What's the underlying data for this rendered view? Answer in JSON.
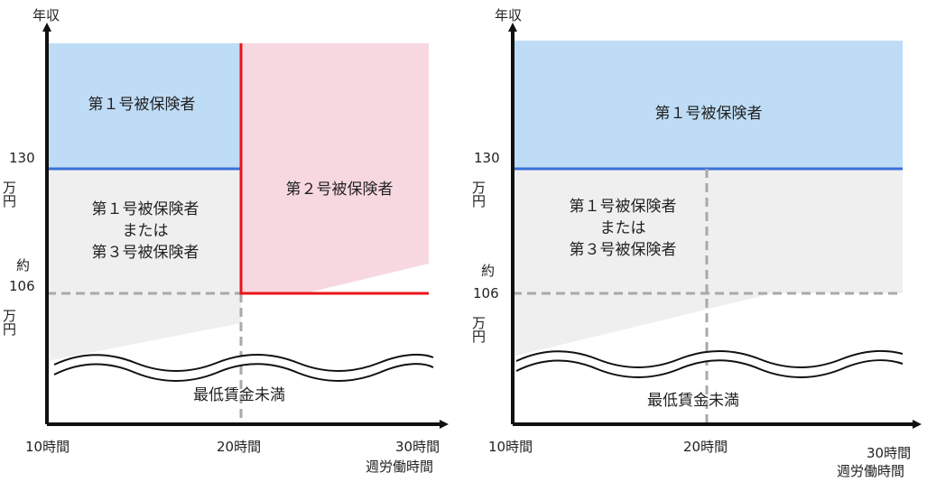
{
  "left": {
    "y_axis_title": "年収",
    "y_labels": {
      "v130": "130",
      "v130_unit": "万円",
      "approx": "約",
      "v106": "106",
      "v106_unit": "万円"
    },
    "x_labels": {
      "h10": "10時間",
      "h20": "20時間",
      "h30": "30時間",
      "axis_title": "週労働時間"
    },
    "regions": {
      "first_insured": "第１号被保険者",
      "second_insured": "第２号被保険者",
      "first_or_third": [
        "第１号被保険者",
        "または",
        "第３号被保険者"
      ],
      "below_min_wage": "最低賃金未満"
    }
  },
  "right": {
    "y_axis_title": "年収",
    "y_labels": {
      "v130": "130",
      "v130_unit": "万円",
      "approx": "約",
      "v106": "106",
      "v106_unit": "万円"
    },
    "x_labels": {
      "h10": "10時間",
      "h20": "20時間",
      "h30": "30時間",
      "axis_title": "週労働時間"
    },
    "regions": {
      "first_insured": "第１号被保険者",
      "first_or_third": [
        "第１号被保険者",
        "または",
        "第３号被保険者"
      ],
      "below_min_wage": "最低賃金未満"
    }
  },
  "colors": {
    "first_insured_fill": "#bfdcf6",
    "second_insured_fill": "#f7d8e0",
    "grey_fill": "#efefef",
    "blue_line": "#3a6fd8",
    "red_line": "#e8141a",
    "dash": "#a9a9a9",
    "axis": "#111111"
  }
}
